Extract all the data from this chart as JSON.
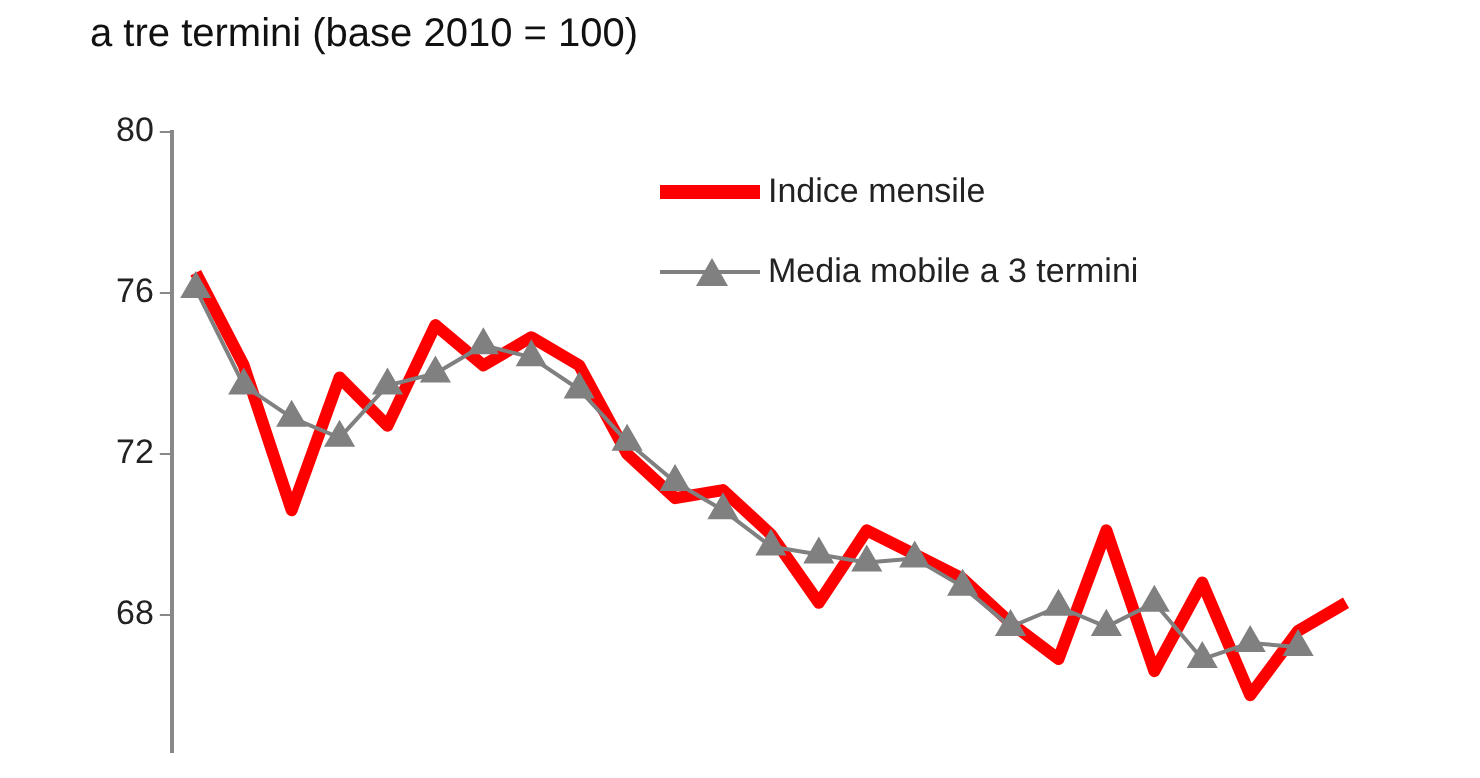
{
  "chart_data": {
    "type": "line",
    "title": "a tre termini (base 2010 = 100)",
    "categories": [
      null,
      null,
      null,
      null,
      null,
      null,
      null,
      null,
      null,
      null,
      null,
      null,
      null,
      null,
      null,
      null,
      null,
      null,
      null,
      null,
      null,
      null,
      null,
      null,
      null
    ],
    "series": [
      {
        "name": "Indice mensile",
        "color": "#ff0000",
        "marker": "none",
        "values": [
          76.5,
          74.2,
          70.6,
          73.9,
          72.7,
          75.2,
          74.2,
          74.9,
          74.2,
          72.0,
          70.9,
          71.1,
          70.0,
          68.3,
          70.1,
          69.5,
          68.9,
          67.8,
          66.9,
          70.1,
          66.6,
          68.8,
          66.0,
          67.6,
          68.3
        ]
      },
      {
        "name": "Media mobile a 3 termini",
        "color": "#808080",
        "marker": "triangle",
        "values": [
          76.1,
          73.7,
          72.9,
          72.4,
          73.7,
          74.0,
          74.7,
          74.4,
          73.6,
          72.3,
          71.3,
          70.6,
          69.7,
          69.5,
          69.3,
          69.4,
          68.7,
          67.7,
          68.2,
          67.7,
          68.3,
          66.9,
          67.3,
          67.2,
          null
        ]
      }
    ],
    "ylim": [
      64.6,
      80
    ],
    "yticks": [
      68,
      72,
      76,
      80
    ],
    "grid": false,
    "legend": "top right",
    "tick_labels": "y"
  }
}
